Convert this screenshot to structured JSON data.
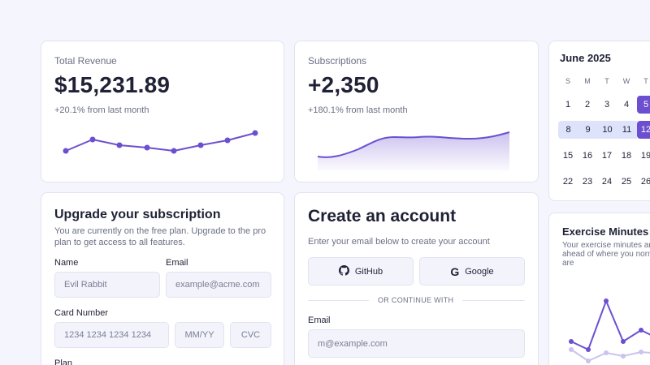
{
  "revenue": {
    "title": "Total Revenue",
    "value": "$15,231.89",
    "change": "+20.1% from last month"
  },
  "subscriptions": {
    "title": "Subscriptions",
    "value": "+2,350",
    "change": "+180.1% from last month"
  },
  "calendar": {
    "month": "June 2025",
    "weekdays": [
      "S",
      "M",
      "T",
      "W",
      "T"
    ],
    "weeks": [
      [
        "1",
        "2",
        "3",
        "4",
        "5"
      ],
      [
        "8",
        "9",
        "10",
        "11",
        "12"
      ],
      [
        "15",
        "16",
        "17",
        "18",
        "19"
      ],
      [
        "22",
        "23",
        "24",
        "25",
        "26"
      ]
    ],
    "selected_days": [
      "5",
      "12"
    ],
    "range_days": [
      "8",
      "9",
      "10",
      "11"
    ]
  },
  "upgrade": {
    "title": "Upgrade your subscription",
    "description": "You are currently  on the free plan. Upgrade to the pro plan to get access to all features.",
    "name_label": "Name",
    "name_value": "Evil Rabbit",
    "email_label": "Email",
    "email_placeholder": "example@acme.com",
    "card_label": "Card Number",
    "card_placeholder": "1234 1234 1234 1234",
    "expiry_placeholder": "MM/YY",
    "cvc_placeholder": "CVC",
    "plan_label": "Plan"
  },
  "create_account": {
    "title": "Create an account",
    "subtitle": "Enter your email below to create your account",
    "github_label": "GitHub",
    "google_label": "Google",
    "divider": "OR CONTINUE WITH",
    "email_label": "Email",
    "email_placeholder": "m@example.com"
  },
  "exercise": {
    "title": "Exercise Minutes",
    "description": "Your exercise  minutes are ahead of where you normally are"
  },
  "colors": {
    "accent": "#6c4fd0",
    "accent_light": "#c9c3ee",
    "range_bg": "#dde3fb",
    "background": "#f5f5fe"
  }
}
